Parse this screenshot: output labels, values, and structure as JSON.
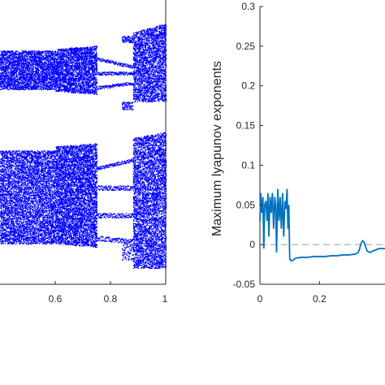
{
  "chart_data": [
    {
      "type": "scatter",
      "title": "",
      "xlabel": "",
      "ylabel": "",
      "x_ticks": [
        "0.6",
        "0.8",
        "1"
      ],
      "xlim": [
        0.4,
        1.0
      ],
      "grid": false,
      "marker_color": "#0000ff",
      "description_of_marks": "bifurcation diagram: dense scattered points forming two bands, upper band near top and lower band with period-doubling branches",
      "regions": [
        {
          "x_from": 0.4,
          "x_to": 0.6,
          "pattern": "dense bands"
        },
        {
          "x_from": 0.6,
          "x_to": 0.75,
          "pattern": "dense bands widening"
        },
        {
          "x_from": 0.75,
          "x_to": 0.88,
          "pattern": "periodic window with branches"
        },
        {
          "x_from": 0.88,
          "x_to": 1.0,
          "pattern": "full chaos"
        }
      ]
    },
    {
      "type": "line",
      "title": "",
      "xlabel": "",
      "ylabel": "Maximum lyapunov exponents",
      "x_ticks": [
        "0",
        "0.2"
      ],
      "y_ticks": [
        "-0.05",
        "0",
        "0.05",
        "0.1",
        "0.15",
        "0.2",
        "0.25",
        "0.3"
      ],
      "xlim": [
        0,
        0.42
      ],
      "ylim": [
        -0.05,
        0.3
      ],
      "grid": false,
      "series": [
        {
          "color": "#0072bd",
          "x": [
            0.0,
            0.003,
            0.006,
            0.01,
            0.013,
            0.016,
            0.02,
            0.024,
            0.027,
            0.03,
            0.034,
            0.038,
            0.042,
            0.046,
            0.05,
            0.053,
            0.056,
            0.06,
            0.064,
            0.068,
            0.072,
            0.076,
            0.08,
            0.084,
            0.088,
            0.091,
            0.094,
            0.097,
            0.1,
            0.104,
            0.11,
            0.12,
            0.14,
            0.16,
            0.18,
            0.2,
            0.22,
            0.24,
            0.26,
            0.28,
            0.3,
            0.32,
            0.33,
            0.335,
            0.34,
            0.345,
            0.35,
            0.355,
            0.36,
            0.37,
            0.38,
            0.4,
            0.42
          ],
          "y": [
            0.03,
            0.065,
            0.04,
            0.06,
            -0.005,
            0.05,
            0.055,
            0.03,
            0.065,
            0.01,
            0.06,
            0.04,
            0.065,
            0.02,
            0.06,
            0.05,
            -0.01,
            0.07,
            0.03,
            0.06,
            0.02,
            0.065,
            0.01,
            0.055,
            0.045,
            0.07,
            0.02,
            0.05,
            -0.018,
            -0.02,
            -0.02,
            -0.017,
            -0.016,
            -0.016,
            -0.015,
            -0.015,
            -0.015,
            -0.014,
            -0.014,
            -0.013,
            -0.013,
            -0.012,
            -0.01,
            -0.005,
            0.002,
            0.005,
            0.003,
            -0.003,
            -0.008,
            -0.01,
            -0.008,
            -0.005,
            -0.005
          ]
        }
      ],
      "reference_line": {
        "y": 0,
        "style": "dashed",
        "color": "#999999"
      }
    }
  ]
}
